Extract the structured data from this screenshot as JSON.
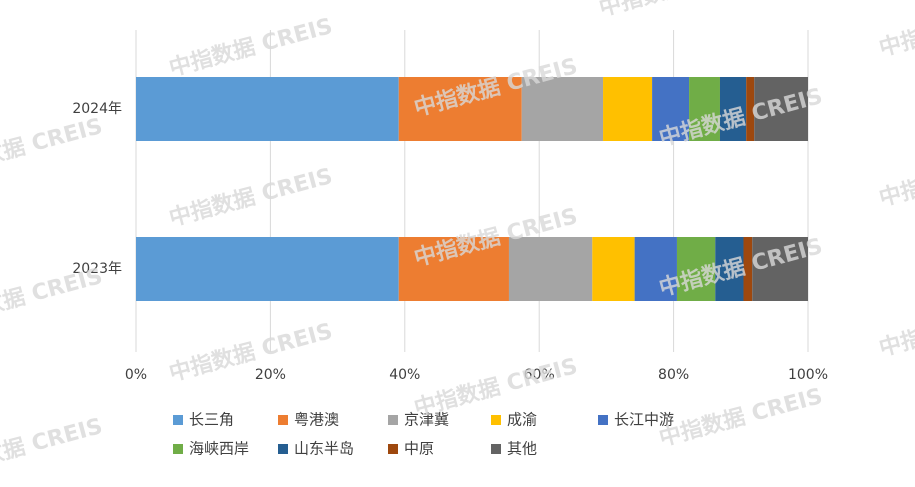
{
  "chart_data": {
    "type": "bar",
    "orientation": "horizontal",
    "stacked": true,
    "categories": [
      "2024年",
      "2023年"
    ],
    "series": [
      {
        "name": "长三角",
        "color": "#5b9bd5",
        "values": [
          39.1,
          39.1
        ]
      },
      {
        "name": "粤港澳",
        "color": "#ed7d31",
        "values": [
          18.3,
          16.4
        ]
      },
      {
        "name": "京津冀",
        "color": "#a5a5a5",
        "values": [
          12.1,
          12.4
        ]
      },
      {
        "name": "成渝",
        "color": "#ffc000",
        "values": [
          7.3,
          6.3
        ]
      },
      {
        "name": "长江中游",
        "color": "#4472c4",
        "values": [
          5.5,
          6.3
        ]
      },
      {
        "name": "海峡西岸",
        "color": "#70ad47",
        "values": [
          4.6,
          5.7
        ]
      },
      {
        "name": "山东半岛",
        "color": "#255e91",
        "values": [
          3.9,
          4.2
        ]
      },
      {
        "name": "中原",
        "color": "#9e480e",
        "values": [
          1.2,
          1.3
        ]
      },
      {
        "name": "其他",
        "color": "#636363",
        "values": [
          8.0,
          8.3
        ]
      }
    ],
    "xlim": [
      0,
      100
    ],
    "xticks": [
      {
        "value": 0,
        "label": "0%"
      },
      {
        "value": 20,
        "label": "20%"
      },
      {
        "value": 40,
        "label": "40%"
      },
      {
        "value": 60,
        "label": "60%"
      },
      {
        "value": 80,
        "label": "80%"
      },
      {
        "value": 100,
        "label": "100%"
      }
    ],
    "grid": true,
    "legend": "bottom",
    "watermark": "中指数据 CREIS"
  }
}
